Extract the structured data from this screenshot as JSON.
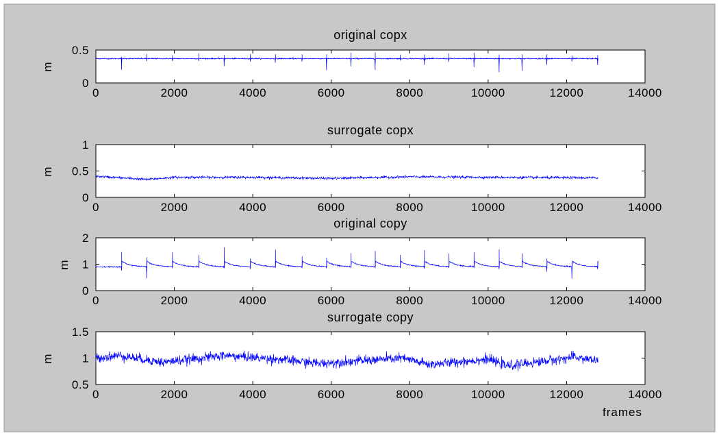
{
  "figure": {
    "background": "#c8c8c8",
    "axes_background": "#ffffff",
    "line_color": "#0000ff"
  },
  "chart_data": [
    {
      "type": "line",
      "title": "original copx",
      "xlabel": "",
      "ylabel": "m",
      "xlim": [
        0,
        14000
      ],
      "ylim": [
        0,
        0.5
      ],
      "xticks": [
        0,
        2000,
        4000,
        6000,
        8000,
        10000,
        12000,
        14000
      ],
      "xtick_labels": [
        "0",
        "2000",
        "4000",
        "6000",
        "8000",
        "10000",
        "12000",
        "14000"
      ],
      "yticks": [
        0,
        0.5
      ],
      "ytick_labels": [
        "0",
        "0.5"
      ],
      "series": [
        {
          "n_points": 12800,
          "baseline": 0.37,
          "drift": [
            [
              0,
              0.37
            ],
            [
              12800,
              0.37
            ]
          ],
          "noise_sd": 0.004,
          "spikes": [
            {
              "x": 650,
              "up": 0.03,
              "down": -0.17
            },
            {
              "x": 1290,
              "up": 0.07,
              "down": -0.04
            },
            {
              "x": 1950,
              "up": 0.06,
              "down": -0.03
            },
            {
              "x": 2620,
              "up": 0.08,
              "down": -0.04
            },
            {
              "x": 3270,
              "up": 0.05,
              "down": -0.12
            },
            {
              "x": 3930,
              "up": 0.07,
              "down": -0.04
            },
            {
              "x": 4570,
              "up": 0.06,
              "down": -0.07
            },
            {
              "x": 5250,
              "up": 0.06,
              "down": -0.05
            },
            {
              "x": 5880,
              "up": 0.05,
              "down": -0.19
            },
            {
              "x": 6500,
              "up": 0.09,
              "down": -0.12
            },
            {
              "x": 7120,
              "up": 0.1,
              "down": -0.17
            },
            {
              "x": 7760,
              "up": 0.06,
              "down": -0.03
            },
            {
              "x": 8370,
              "up": 0.06,
              "down": -0.1
            },
            {
              "x": 9000,
              "up": 0.08,
              "down": -0.05
            },
            {
              "x": 9640,
              "up": 0.09,
              "down": -0.13
            },
            {
              "x": 10280,
              "up": 0.06,
              "down": -0.21
            },
            {
              "x": 10860,
              "up": 0.06,
              "down": -0.19
            },
            {
              "x": 11490,
              "up": 0.06,
              "down": -0.1
            },
            {
              "x": 12130,
              "up": 0.04,
              "down": -0.05
            },
            {
              "x": 12790,
              "up": 0.05,
              "down": -0.1
            }
          ]
        }
      ]
    },
    {
      "type": "line",
      "title": "surrogate copx",
      "xlabel": "",
      "ylabel": "m",
      "xlim": [
        0,
        14000
      ],
      "ylim": [
        0,
        1
      ],
      "xticks": [
        0,
        2000,
        4000,
        6000,
        8000,
        10000,
        12000,
        14000
      ],
      "xtick_labels": [
        "0",
        "2000",
        "4000",
        "6000",
        "8000",
        "10000",
        "12000",
        "14000"
      ],
      "yticks": [
        0,
        0.5,
        1
      ],
      "ytick_labels": [
        "0",
        "0.5",
        "1"
      ],
      "series": [
        {
          "n_points": 12800,
          "baseline": 0.37,
          "drift": [
            [
              0,
              0.4
            ],
            [
              1300,
              0.34
            ],
            [
              2000,
              0.38
            ],
            [
              4000,
              0.38
            ],
            [
              6000,
              0.36
            ],
            [
              8000,
              0.39
            ],
            [
              10000,
              0.38
            ],
            [
              12800,
              0.37
            ]
          ],
          "noise_sd": 0.012,
          "spikes": []
        }
      ]
    },
    {
      "type": "line",
      "title": "original copy",
      "xlabel": "",
      "ylabel": "m",
      "xlim": [
        0,
        14000
      ],
      "ylim": [
        0,
        2
      ],
      "xticks": [
        0,
        2000,
        4000,
        6000,
        8000,
        10000,
        12000,
        14000
      ],
      "xtick_labels": [
        "0",
        "2000",
        "4000",
        "6000",
        "8000",
        "10000",
        "12000",
        "14000"
      ],
      "yticks": [
        0,
        1,
        2
      ],
      "ytick_labels": [
        "0",
        "1",
        "2"
      ],
      "series": [
        {
          "n_points": 12800,
          "baseline": 0.95,
          "drift": [
            [
              0,
              0.9
            ],
            [
              12800,
              0.9
            ]
          ],
          "noise_sd": 0.01,
          "sawtooth": {
            "jump": 0.22,
            "decay": 0.005
          },
          "spikes": [
            {
              "x": 650,
              "up": 0.55,
              "down": -0.15
            },
            {
              "x": 1290,
              "up": 0.35,
              "down": -0.45
            },
            {
              "x": 1950,
              "up": 0.55,
              "down": -0.05
            },
            {
              "x": 2620,
              "up": 0.45,
              "down": -0.05
            },
            {
              "x": 3270,
              "up": 0.75,
              "down": -0.05
            },
            {
              "x": 3930,
              "up": 0.3,
              "down": -0.1
            },
            {
              "x": 4570,
              "up": 0.65,
              "down": -0.05
            },
            {
              "x": 5250,
              "up": 0.4,
              "down": -0.05
            },
            {
              "x": 5880,
              "up": 0.35,
              "down": -0.05
            },
            {
              "x": 6500,
              "up": 0.5,
              "down": -0.05
            },
            {
              "x": 7120,
              "up": 0.6,
              "down": -0.05
            },
            {
              "x": 7760,
              "up": 0.45,
              "down": -0.05
            },
            {
              "x": 8370,
              "up": 0.65,
              "down": -0.05
            },
            {
              "x": 9000,
              "up": 0.5,
              "down": -0.05
            },
            {
              "x": 9640,
              "up": 0.55,
              "down": -0.05
            },
            {
              "x": 10280,
              "up": 0.65,
              "down": -0.1
            },
            {
              "x": 10860,
              "up": 0.5,
              "down": -0.05
            },
            {
              "x": 11490,
              "up": 0.3,
              "down": -0.2
            },
            {
              "x": 12130,
              "up": 0.15,
              "down": -0.45
            },
            {
              "x": 12790,
              "up": 0.2,
              "down": -0.1
            }
          ]
        }
      ]
    },
    {
      "type": "line",
      "title": "surrogate copy",
      "xlabel": "frames",
      "ylabel": "m",
      "xlim": [
        0,
        14000
      ],
      "ylim": [
        0.5,
        1.5
      ],
      "xticks": [
        0,
        2000,
        4000,
        6000,
        8000,
        10000,
        12000,
        14000
      ],
      "xtick_labels": [
        "0",
        "2000",
        "4000",
        "6000",
        "8000",
        "10000",
        "12000",
        "14000"
      ],
      "yticks": [
        0.5,
        1,
        1.5
      ],
      "ytick_labels": [
        "0.5",
        "1",
        "1.5"
      ],
      "series": [
        {
          "n_points": 12800,
          "baseline": 0.95,
          "drift": [
            [
              0,
              1.0
            ],
            [
              600,
              1.05
            ],
            [
              1700,
              0.92
            ],
            [
              3300,
              1.05
            ],
            [
              4600,
              0.98
            ],
            [
              5700,
              0.9
            ],
            [
              7800,
              1.0
            ],
            [
              8500,
              0.88
            ],
            [
              10000,
              0.98
            ],
            [
              10500,
              0.85
            ],
            [
              12200,
              1.02
            ],
            [
              12800,
              0.95
            ]
          ],
          "noise_sd": 0.045,
          "spikes": []
        }
      ]
    }
  ]
}
